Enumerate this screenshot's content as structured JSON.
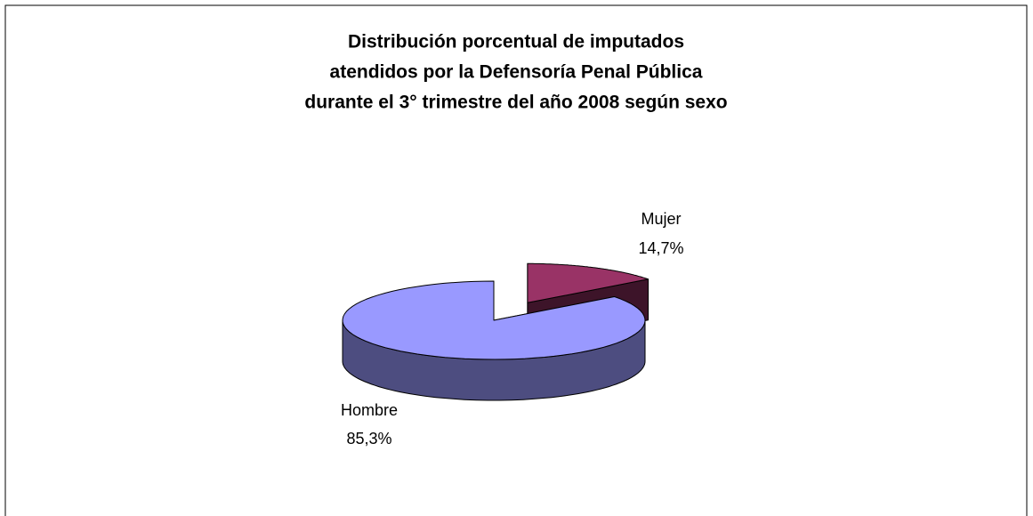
{
  "chart_data": {
    "type": "pie3d",
    "title": [
      "Distribución porcentual de imputados",
      "atendidos por la Defensoría Penal Pública",
      "durante el 3° trimestre del año 2008 según sexo"
    ],
    "categories": [
      "Hombre",
      "Mujer"
    ],
    "values": [
      85.3,
      14.7
    ],
    "value_labels": [
      "85,3%",
      "14,7%"
    ],
    "colors": [
      "#9999ff",
      "#993366"
    ]
  }
}
